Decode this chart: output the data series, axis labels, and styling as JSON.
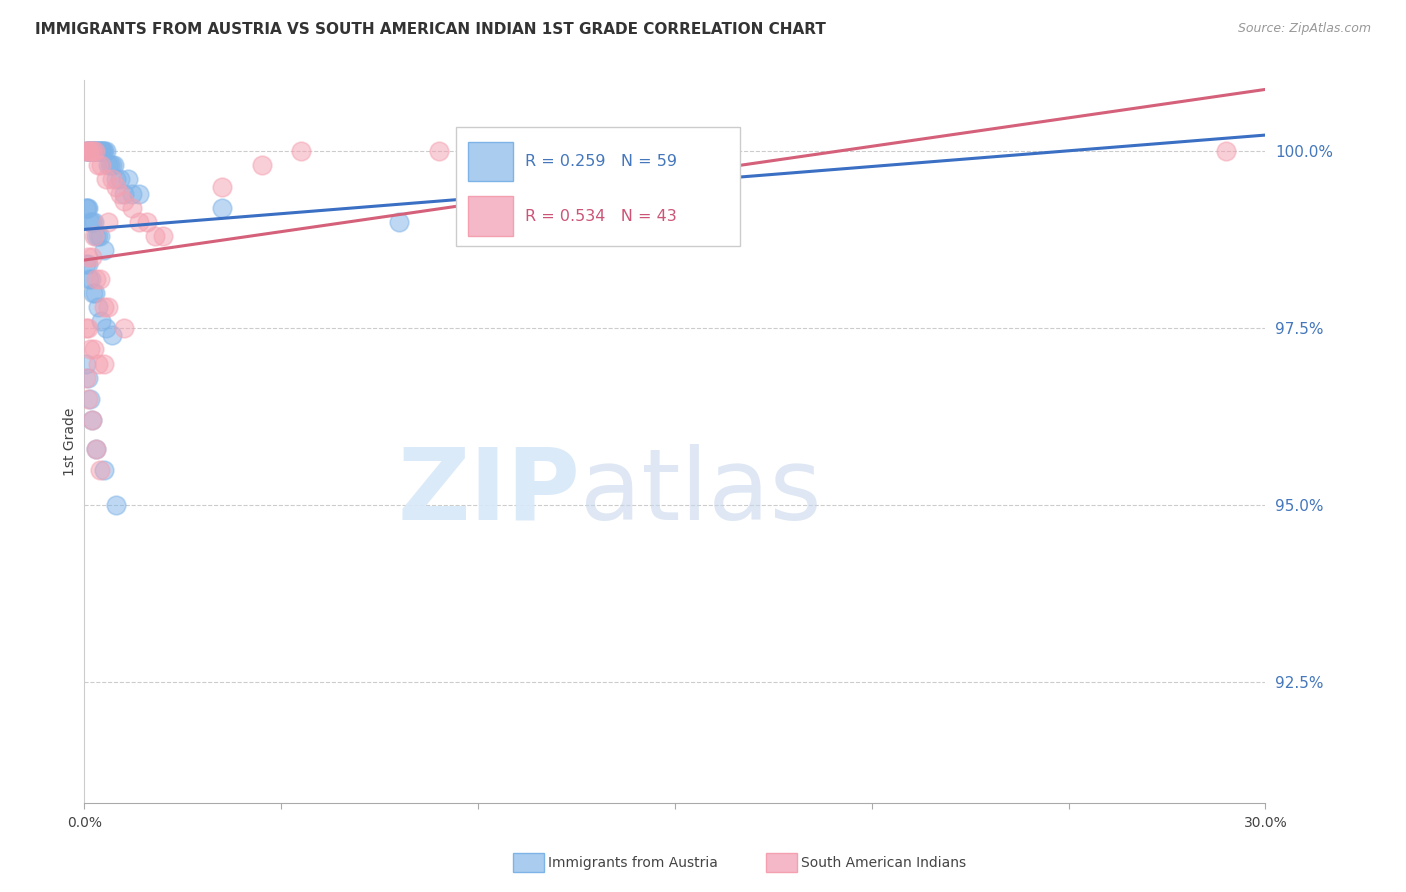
{
  "title": "IMMIGRANTS FROM AUSTRIA VS SOUTH AMERICAN INDIAN 1ST GRADE CORRELATION CHART",
  "source": "Source: ZipAtlas.com",
  "ylabel_label": "1st Grade",
  "legend_blue_label": "Immigrants from Austria",
  "legend_pink_label": "South American Indians",
  "R_blue": 0.259,
  "N_blue": 59,
  "R_pink": 0.534,
  "N_pink": 43,
  "blue_color": "#7EB3E8",
  "pink_color": "#F4A0B0",
  "line_blue": "#3A6FC4",
  "line_pink": "#D4607A",
  "y_ticks": [
    92.5,
    95.0,
    97.5,
    100.0
  ],
  "ylim_min": 90.8,
  "ylim_max": 101.0,
  "xlim_min": 0.0,
  "xlim_max": 30.0,
  "blue_x": [
    0.05,
    0.08,
    0.1,
    0.12,
    0.15,
    0.18,
    0.2,
    0.22,
    0.25,
    0.28,
    0.3,
    0.32,
    0.35,
    0.38,
    0.4,
    0.42,
    0.45,
    0.48,
    0.5,
    0.55,
    0.6,
    0.65,
    0.7,
    0.75,
    0.8,
    0.9,
    1.0,
    1.1,
    1.2,
    1.4,
    0.05,
    0.07,
    0.1,
    0.15,
    0.2,
    0.25,
    0.3,
    0.35,
    0.4,
    0.5,
    0.05,
    0.08,
    0.12,
    0.18,
    0.22,
    0.28,
    0.35,
    0.42,
    0.55,
    0.7,
    0.05,
    0.1,
    0.15,
    0.2,
    0.3,
    0.5,
    0.8,
    3.5,
    8.0
  ],
  "blue_y": [
    100.0,
    100.0,
    100.0,
    100.0,
    100.0,
    100.0,
    100.0,
    100.0,
    100.0,
    100.0,
    100.0,
    100.0,
    100.0,
    100.0,
    100.0,
    100.0,
    100.0,
    100.0,
    100.0,
    100.0,
    99.8,
    99.8,
    99.8,
    99.8,
    99.6,
    99.6,
    99.4,
    99.6,
    99.4,
    99.4,
    99.2,
    99.2,
    99.2,
    99.0,
    99.0,
    99.0,
    98.8,
    98.8,
    98.8,
    98.6,
    98.4,
    98.4,
    98.2,
    98.2,
    98.0,
    98.0,
    97.8,
    97.6,
    97.5,
    97.4,
    97.0,
    96.8,
    96.5,
    96.2,
    95.8,
    95.5,
    95.0,
    99.2,
    99.0
  ],
  "pink_x": [
    0.05,
    0.08,
    0.12,
    0.18,
    0.22,
    0.28,
    0.35,
    0.42,
    0.55,
    0.7,
    0.8,
    0.9,
    1.0,
    1.2,
    1.4,
    1.6,
    1.8,
    2.0,
    0.1,
    0.2,
    0.3,
    0.4,
    0.5,
    0.6,
    0.05,
    0.1,
    0.15,
    0.25,
    0.35,
    0.5,
    0.05,
    0.1,
    0.2,
    0.3,
    0.4,
    3.5,
    4.5,
    5.5,
    9.0,
    29.0,
    0.25,
    0.6,
    1.0
  ],
  "pink_y": [
    100.0,
    100.0,
    100.0,
    100.0,
    100.0,
    100.0,
    99.8,
    99.8,
    99.6,
    99.6,
    99.5,
    99.4,
    99.3,
    99.2,
    99.0,
    99.0,
    98.8,
    98.8,
    98.5,
    98.5,
    98.2,
    98.2,
    97.8,
    97.8,
    97.5,
    97.5,
    97.2,
    97.2,
    97.0,
    97.0,
    96.8,
    96.5,
    96.2,
    95.8,
    95.5,
    99.5,
    99.8,
    100.0,
    100.0,
    100.0,
    98.8,
    99.0,
    97.5
  ]
}
